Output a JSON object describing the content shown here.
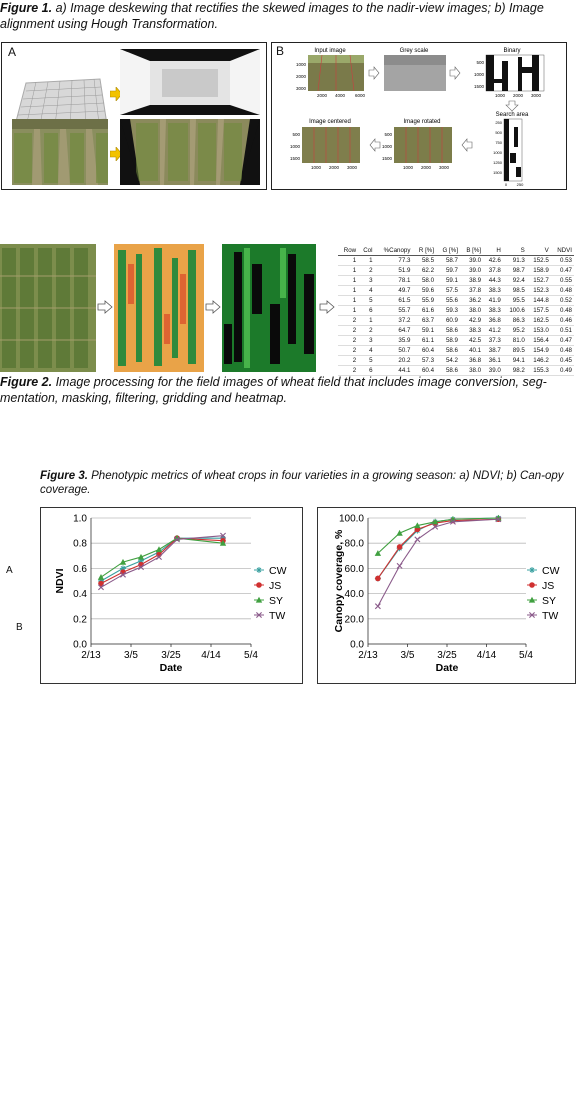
{
  "figure1": {
    "label": "Figure 1.",
    "caption": "a) Image deskewing that rectifies the skewed images to the nadir-view images; b) Image alignment using Hough Transformation.",
    "panel_a_label": "A",
    "panel_b_label": "B",
    "subplots": [
      {
        "title": "Input image",
        "yticks": [
          "1000",
          "2000",
          "3000"
        ],
        "xticks": [
          "2000",
          "4000",
          "6000"
        ]
      },
      {
        "title": "Grey scale",
        "yticks": [],
        "xticks": []
      },
      {
        "title": "Binary",
        "yticks": [
          "500",
          "1000",
          "1500"
        ],
        "xticks": [
          "1000",
          "2000",
          "3000"
        ]
      },
      {
        "title": "Image centered",
        "yticks": [
          "500",
          "1000",
          "1500"
        ],
        "xticks": [
          "1000",
          "2000",
          "3000"
        ]
      },
      {
        "title": "Image rotated",
        "yticks": [
          "500",
          "1000",
          "1500"
        ],
        "xticks": [
          "1000",
          "2000",
          "3000"
        ]
      },
      {
        "title": "Search area",
        "yticks": [
          "250",
          "500",
          "750",
          "1000",
          "1250",
          "1500"
        ],
        "xticks": [
          "0",
          "250"
        ]
      }
    ]
  },
  "figure2": {
    "label": "Figure 2.",
    "caption": "Image processing for the field images of wheat field that includes image conversion, seg-mentation, masking, filtering, gridding and heatmap.",
    "table": {
      "headers": [
        "Row",
        "Col",
        "%Canopy",
        "R [%]",
        "G [%]",
        "B [%]",
        "H",
        "S",
        "V",
        "NDVI"
      ],
      "rows": [
        [
          "1",
          "1",
          "77.3",
          "58.5",
          "58.7",
          "39.0",
          "42.6",
          "91.3",
          "152.5",
          "0.53"
        ],
        [
          "1",
          "2",
          "51.9",
          "62.2",
          "59.7",
          "39.0",
          "37.8",
          "98.7",
          "158.9",
          "0.47"
        ],
        [
          "1",
          "3",
          "78.1",
          "58.0",
          "59.1",
          "38.9",
          "44.3",
          "92.4",
          "152.7",
          "0.55"
        ],
        [
          "1",
          "4",
          "49.7",
          "59.6",
          "57.5",
          "37.8",
          "38.3",
          "98.5",
          "152.3",
          "0.48"
        ],
        [
          "1",
          "5",
          "61.5",
          "55.9",
          "55.6",
          "36.2",
          "41.9",
          "95.5",
          "144.8",
          "0.52"
        ],
        [
          "1",
          "6",
          "55.7",
          "61.6",
          "59.3",
          "38.0",
          "38.3",
          "100.6",
          "157.5",
          "0.48"
        ],
        [
          "2",
          "1",
          "37.2",
          "63.7",
          "60.9",
          "42.9",
          "36.8",
          "86.3",
          "162.5",
          "0.46"
        ],
        [
          "2",
          "2",
          "64.7",
          "59.1",
          "58.6",
          "38.3",
          "41.2",
          "95.2",
          "153.0",
          "0.51"
        ],
        [
          "2",
          "3",
          "35.9",
          "61.1",
          "58.9",
          "42.5",
          "37.3",
          "81.0",
          "156.4",
          "0.47"
        ],
        [
          "2",
          "4",
          "50.7",
          "60.4",
          "58.6",
          "40.1",
          "38.7",
          "89.5",
          "154.9",
          "0.48"
        ],
        [
          "2",
          "5",
          "20.2",
          "57.3",
          "54.2",
          "36.8",
          "36.1",
          "94.1",
          "146.2",
          "0.45"
        ],
        [
          "2",
          "6",
          "44.1",
          "60.4",
          "58.6",
          "38.0",
          "39.0",
          "98.2",
          "155.3",
          "0.49"
        ]
      ]
    }
  },
  "figure3": {
    "label": "Figure 3.",
    "caption": "Phenotypic metrics of wheat crops in four varieties in a growing season: a) NDVI; b) Can-opy coverage.",
    "side_labels": [
      "A",
      "B"
    ]
  },
  "chart_data": [
    {
      "type": "line",
      "title": "",
      "xlabel": "Date",
      "ylabel": "NDVI",
      "x_ticks": [
        "2/13",
        "3/5",
        "3/25",
        "4/14",
        "5/4"
      ],
      "x_days": [
        0,
        20,
        40,
        60,
        80
      ],
      "y_ticks": [
        "0.0",
        "0.2",
        "0.4",
        "0.6",
        "0.8",
        "1.0"
      ],
      "ylim": [
        0,
        1
      ],
      "x": [
        5,
        16,
        25,
        34,
        43,
        66
      ],
      "series": [
        {
          "name": "CW",
          "color": "#3aa0a0",
          "marker": "star",
          "values": [
            0.5,
            0.6,
            0.66,
            0.73,
            0.84,
            0.84
          ]
        },
        {
          "name": "JS",
          "color": "#d03030",
          "marker": "circle",
          "values": [
            0.48,
            0.57,
            0.63,
            0.71,
            0.84,
            0.82
          ]
        },
        {
          "name": "SY",
          "color": "#40a040",
          "marker": "triangle",
          "values": [
            0.53,
            0.65,
            0.69,
            0.75,
            0.84,
            0.8
          ]
        },
        {
          "name": "TW",
          "color": "#8a5a8a",
          "marker": "x",
          "values": [
            0.45,
            0.55,
            0.61,
            0.69,
            0.83,
            0.86
          ]
        }
      ],
      "grid": "horizontal",
      "legend": "right"
    },
    {
      "type": "line",
      "title": "",
      "xlabel": "Date",
      "ylabel": "Canopy coverage, %",
      "x_ticks": [
        "2/13",
        "3/5",
        "3/25",
        "4/14",
        "5/4"
      ],
      "x_days": [
        0,
        20,
        40,
        60,
        80
      ],
      "y_ticks": [
        "0.0",
        "20.0",
        "40.0",
        "60.0",
        "80.0",
        "100.0"
      ],
      "ylim": [
        0,
        100
      ],
      "x": [
        5,
        16,
        25,
        34,
        43,
        66
      ],
      "series": [
        {
          "name": "CW",
          "color": "#3aa0a0",
          "marker": "star",
          "values": [
            52,
            76,
            90,
            97,
            99,
            100
          ]
        },
        {
          "name": "JS",
          "color": "#d03030",
          "marker": "circle",
          "values": [
            52,
            77,
            91,
            96,
            98,
            99
          ]
        },
        {
          "name": "SY",
          "color": "#40a040",
          "marker": "triangle",
          "values": [
            72,
            88,
            94,
            97,
            99,
            100
          ]
        },
        {
          "name": "TW",
          "color": "#8a5a8a",
          "marker": "x",
          "values": [
            30,
            62,
            83,
            93,
            97,
            99
          ]
        }
      ],
      "grid": "horizontal",
      "legend": "right"
    }
  ]
}
